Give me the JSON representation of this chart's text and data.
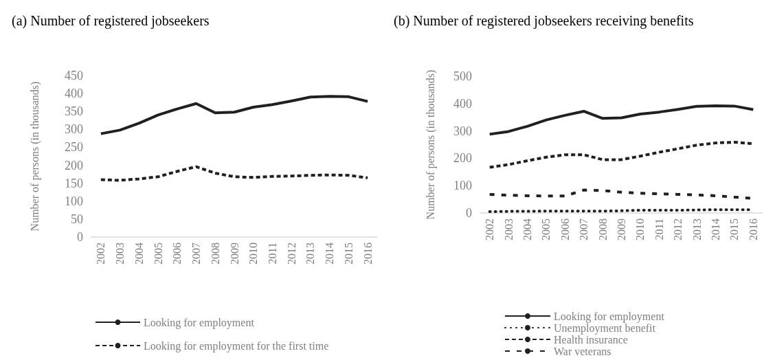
{
  "chart_data": [
    {
      "type": "line",
      "title": "(a) Number of registered jobseekers",
      "ylabel": "Number of persons (in thousands)",
      "categories": [
        "2002",
        "2003",
        "2004",
        "2005",
        "2006",
        "2007",
        "2008",
        "2009",
        "2010",
        "2011",
        "2012",
        "2013",
        "2014",
        "2015",
        "2016"
      ],
      "ylim": [
        0,
        450
      ],
      "yticks": [
        0,
        50,
        100,
        150,
        200,
        250,
        300,
        350,
        400,
        450
      ],
      "grid": false,
      "legend": "bottom",
      "marker": "none",
      "series": [
        {
          "name": "Looking for employment",
          "color": "#231f20",
          "line_style": "solid",
          "values": [
            288,
            298,
            317,
            340,
            357,
            372,
            346,
            348,
            362,
            369,
            379,
            390,
            392,
            391,
            378
          ]
        },
        {
          "name": "Looking for employment for the first time",
          "color": "#231f20",
          "line_style": "dashed",
          "values": [
            160,
            158,
            162,
            168,
            183,
            196,
            178,
            168,
            166,
            169,
            170,
            172,
            173,
            172,
            165
          ]
        }
      ]
    },
    {
      "type": "line",
      "title": "(b) Number of registered jobseekers receiving benefits",
      "ylabel": "Number of persons (in thousands)",
      "categories": [
        "2002",
        "2003",
        "2004",
        "2005",
        "2006",
        "2007",
        "2008",
        "2009",
        "2010",
        "2011",
        "2012",
        "2013",
        "2014",
        "2015",
        "2016"
      ],
      "ylim": [
        0,
        500
      ],
      "yticks": [
        0,
        100,
        200,
        300,
        400,
        500
      ],
      "grid": false,
      "legend": "bottom",
      "marker": "none",
      "series": [
        {
          "name": "Looking for employment",
          "color": "#231f20",
          "line_style": "solid",
          "values": [
            288,
            298,
            317,
            340,
            357,
            372,
            346,
            348,
            362,
            369,
            379,
            390,
            392,
            391,
            378
          ]
        },
        {
          "name": "Unemployment benefit",
          "color": "#231f20",
          "line_style": "dotted",
          "values": [
            5,
            6,
            6,
            7,
            7,
            7,
            7,
            8,
            10,
            10,
            10,
            11,
            12,
            12,
            12
          ]
        },
        {
          "name": "Health insurance",
          "color": "#231f20",
          "line_style": "dashed",
          "values": [
            167,
            177,
            191,
            204,
            213,
            213,
            195,
            195,
            208,
            222,
            235,
            248,
            256,
            259,
            253
          ]
        },
        {
          "name": "War veterans",
          "color": "#231f20",
          "line_style": "dashed",
          "values": [
            68,
            65,
            63,
            62,
            62,
            84,
            82,
            76,
            72,
            70,
            68,
            66,
            63,
            58,
            53
          ]
        }
      ]
    }
  ]
}
